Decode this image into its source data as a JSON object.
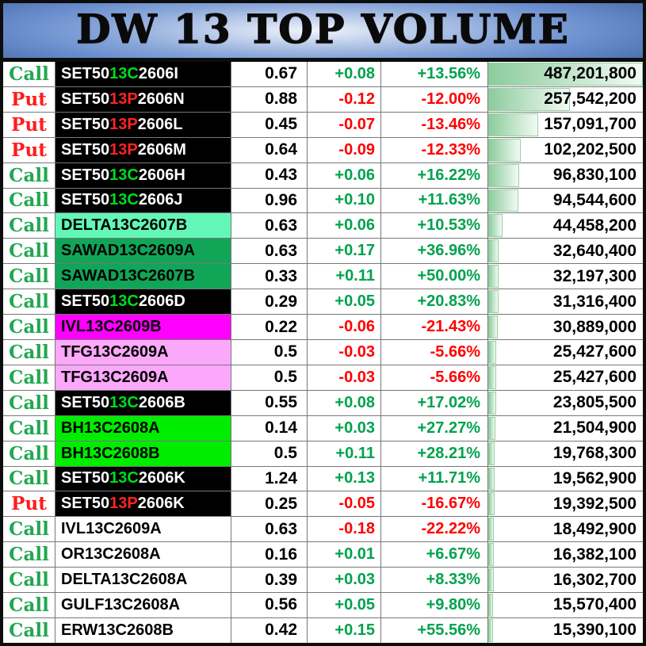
{
  "header": {
    "title": "DW 13 TOP VOLUME"
  },
  "columns": [
    "side",
    "symbol",
    "last_price",
    "change",
    "change_percent",
    "volume"
  ],
  "colors": {
    "call_text": "#22a750",
    "put_text": "#ff1c1c",
    "up": "#00a24e",
    "down": "#fe0000",
    "grid_line": "#777777",
    "bar_fill_start": "#8ccc9c",
    "bar_fill_end": "#f2faf4",
    "bar_border": "#97d1a4",
    "title_text": "#0a0a0a",
    "title_bg_edge": "#4d6fae",
    "title_bg_center": "#f0f4fb"
  },
  "symbol_styles": {
    "black": {
      "bg": "#000000",
      "fg": "#ffffff",
      "mid_call": "#00dc1e",
      "mid_put": "#ff2424"
    },
    "aqua": {
      "bg": "#63f7b7",
      "fg": "#000000"
    },
    "green": {
      "bg": "#11a558",
      "fg": "#000000"
    },
    "magenta": {
      "bg": "#ff00fe",
      "fg": "#000000"
    },
    "pink": {
      "bg": "#fba8fb",
      "fg": "#000000"
    },
    "brightgreen": {
      "bg": "#00ed00",
      "fg": "#000000"
    },
    "plain": {
      "bg": "#ffffff",
      "fg": "#000000"
    }
  },
  "max_volume": 487201800,
  "rows": [
    {
      "side": "Call",
      "symbol_pre": "SET50",
      "symbol_mid": "13C",
      "symbol_post": "2606I",
      "symbol_style": "black",
      "price": "0.67",
      "change": "+0.08",
      "change_pct": "+13.56%",
      "volume": "487,201,800",
      "volume_value": 487201800,
      "direction": "up"
    },
    {
      "side": "Put",
      "symbol_pre": "SET50",
      "symbol_mid": "13P",
      "symbol_post": "2606N",
      "symbol_style": "black",
      "price": "0.88",
      "change": "-0.12",
      "change_pct": "-12.00%",
      "volume": "257,542,200",
      "volume_value": 257542200,
      "direction": "down"
    },
    {
      "side": "Put",
      "symbol_pre": "SET50",
      "symbol_mid": "13P",
      "symbol_post": "2606L",
      "symbol_style": "black",
      "price": "0.45",
      "change": "-0.07",
      "change_pct": "-13.46%",
      "volume": "157,091,700",
      "volume_value": 157091700,
      "direction": "down"
    },
    {
      "side": "Put",
      "symbol_pre": "SET50",
      "symbol_mid": "13P",
      "symbol_post": "2606M",
      "symbol_style": "black",
      "price": "0.64",
      "change": "-0.09",
      "change_pct": "-12.33%",
      "volume": "102,202,500",
      "volume_value": 102202500,
      "direction": "down"
    },
    {
      "side": "Call",
      "symbol_pre": "SET50",
      "symbol_mid": "13C",
      "symbol_post": "2606H",
      "symbol_style": "black",
      "price": "0.43",
      "change": "+0.06",
      "change_pct": "+16.22%",
      "volume": "96,830,100",
      "volume_value": 96830100,
      "direction": "up"
    },
    {
      "side": "Call",
      "symbol_pre": "SET50",
      "symbol_mid": "13C",
      "symbol_post": "2606J",
      "symbol_style": "black",
      "price": "0.96",
      "change": "+0.10",
      "change_pct": "+11.63%",
      "volume": "94,544,600",
      "volume_value": 94544600,
      "direction": "up"
    },
    {
      "side": "Call",
      "symbol_pre": "DELTA13C2607B",
      "symbol_mid": "",
      "symbol_post": "",
      "symbol_style": "aqua",
      "price": "0.63",
      "change": "+0.06",
      "change_pct": "+10.53%",
      "volume": "44,458,200",
      "volume_value": 44458200,
      "direction": "up"
    },
    {
      "side": "Call",
      "symbol_pre": "SAWAD13C2609A",
      "symbol_mid": "",
      "symbol_post": "",
      "symbol_style": "green",
      "price": "0.63",
      "change": "+0.17",
      "change_pct": "+36.96%",
      "volume": "32,640,400",
      "volume_value": 32640400,
      "direction": "up"
    },
    {
      "side": "Call",
      "symbol_pre": "SAWAD13C2607B",
      "symbol_mid": "",
      "symbol_post": "",
      "symbol_style": "green",
      "price": "0.33",
      "change": "+0.11",
      "change_pct": "+50.00%",
      "volume": "32,197,300",
      "volume_value": 32197300,
      "direction": "up"
    },
    {
      "side": "Call",
      "symbol_pre": "SET50",
      "symbol_mid": "13C",
      "symbol_post": "2606D",
      "symbol_style": "black",
      "price": "0.29",
      "change": "+0.05",
      "change_pct": "+20.83%",
      "volume": "31,316,400",
      "volume_value": 31316400,
      "direction": "up"
    },
    {
      "side": "Call",
      "symbol_pre": "IVL13C2609B",
      "symbol_mid": "",
      "symbol_post": "",
      "symbol_style": "magenta",
      "price": "0.22",
      "change": "-0.06",
      "change_pct": "-21.43%",
      "volume": "30,889,000",
      "volume_value": 30889000,
      "direction": "down"
    },
    {
      "side": "Call",
      "symbol_pre": "TFG13C2609A",
      "symbol_mid": "",
      "symbol_post": "",
      "symbol_style": "pink",
      "price": "0.5",
      "change": "-0.03",
      "change_pct": "-5.66%",
      "volume": "25,427,600",
      "volume_value": 25427600,
      "direction": "down"
    },
    {
      "side": "Call",
      "symbol_pre": "TFG13C2609A",
      "symbol_mid": "",
      "symbol_post": "",
      "symbol_style": "pink",
      "price": "0.5",
      "change": "-0.03",
      "change_pct": "-5.66%",
      "volume": "25,427,600",
      "volume_value": 25427600,
      "direction": "down"
    },
    {
      "side": "Call",
      "symbol_pre": "SET50",
      "symbol_mid": "13C",
      "symbol_post": "2606B",
      "symbol_style": "black",
      "price": "0.55",
      "change": "+0.08",
      "change_pct": "+17.02%",
      "volume": "23,805,500",
      "volume_value": 23805500,
      "direction": "up"
    },
    {
      "side": "Call",
      "symbol_pre": "BH13C2608A",
      "symbol_mid": "",
      "symbol_post": "",
      "symbol_style": "brightgreen",
      "price": "0.14",
      "change": "+0.03",
      "change_pct": "+27.27%",
      "volume": "21,504,900",
      "volume_value": 21504900,
      "direction": "up"
    },
    {
      "side": "Call",
      "symbol_pre": "BH13C2608B",
      "symbol_mid": "",
      "symbol_post": "",
      "symbol_style": "brightgreen",
      "price": "0.5",
      "change": "+0.11",
      "change_pct": "+28.21%",
      "volume": "19,768,300",
      "volume_value": 19768300,
      "direction": "up"
    },
    {
      "side": "Call",
      "symbol_pre": "SET50",
      "symbol_mid": "13C",
      "symbol_post": "2606K",
      "symbol_style": "black",
      "price": "1.24",
      "change": "+0.13",
      "change_pct": "+11.71%",
      "volume": "19,562,900",
      "volume_value": 19562900,
      "direction": "up"
    },
    {
      "side": "Put",
      "symbol_pre": "SET50",
      "symbol_mid": "13P",
      "symbol_post": "2606K",
      "symbol_style": "black",
      "price": "0.25",
      "change": "-0.05",
      "change_pct": "-16.67%",
      "volume": "19,392,500",
      "volume_value": 19392500,
      "direction": "down"
    },
    {
      "side": "Call",
      "symbol_pre": "IVL13C2609A",
      "symbol_mid": "",
      "symbol_post": "",
      "symbol_style": "plain",
      "price": "0.63",
      "change": "-0.18",
      "change_pct": "-22.22%",
      "volume": "18,492,900",
      "volume_value": 18492900,
      "direction": "down"
    },
    {
      "side": "Call",
      "symbol_pre": "OR13C2608A",
      "symbol_mid": "",
      "symbol_post": "",
      "symbol_style": "plain",
      "price": "0.16",
      "change": "+0.01",
      "change_pct": "+6.67%",
      "volume": "16,382,100",
      "volume_value": 16382100,
      "direction": "up"
    },
    {
      "side": "Call",
      "symbol_pre": "DELTA13C2608A",
      "symbol_mid": "",
      "symbol_post": "",
      "symbol_style": "plain",
      "price": "0.39",
      "change": "+0.03",
      "change_pct": "+8.33%",
      "volume": "16,302,700",
      "volume_value": 16302700,
      "direction": "up"
    },
    {
      "side": "Call",
      "symbol_pre": "GULF13C2608A",
      "symbol_mid": "",
      "symbol_post": "",
      "symbol_style": "plain",
      "price": "0.56",
      "change": "+0.05",
      "change_pct": "+9.80%",
      "volume": "15,570,400",
      "volume_value": 15570400,
      "direction": "up"
    },
    {
      "side": "Call",
      "symbol_pre": "ERW13C2608B",
      "symbol_mid": "",
      "symbol_post": "",
      "symbol_style": "plain",
      "price": "0.42",
      "change": "+0.15",
      "change_pct": "+55.56%",
      "volume": "15,390,100",
      "volume_value": 15390100,
      "direction": "up"
    }
  ]
}
